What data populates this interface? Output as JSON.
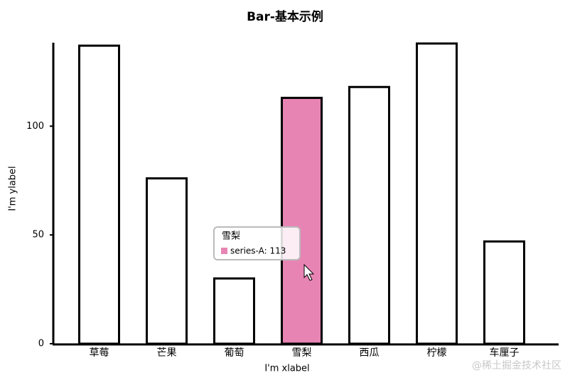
{
  "chart_data": {
    "type": "bar",
    "title": "Bar-基本示例",
    "x_label": "I'm xlabel",
    "y_label": "I'm ylabel",
    "categories": [
      "草莓",
      "芒果",
      "葡萄",
      "雪梨",
      "西瓜",
      "柠檬",
      "车厘子"
    ],
    "series": [
      {
        "name": "series-A",
        "color": "#000000",
        "values": [
          137,
          76,
          30,
          113,
          118,
          138,
          47
        ]
      }
    ],
    "ylim": [
      0,
      140
    ],
    "yticks": [
      0,
      50,
      100
    ],
    "highlight": {
      "category": "雪梨",
      "color": "#e884b4"
    },
    "tooltip": {
      "title": "雪梨",
      "text": "series-A: 113"
    },
    "watermark": "@稀土掘金技术社区"
  }
}
